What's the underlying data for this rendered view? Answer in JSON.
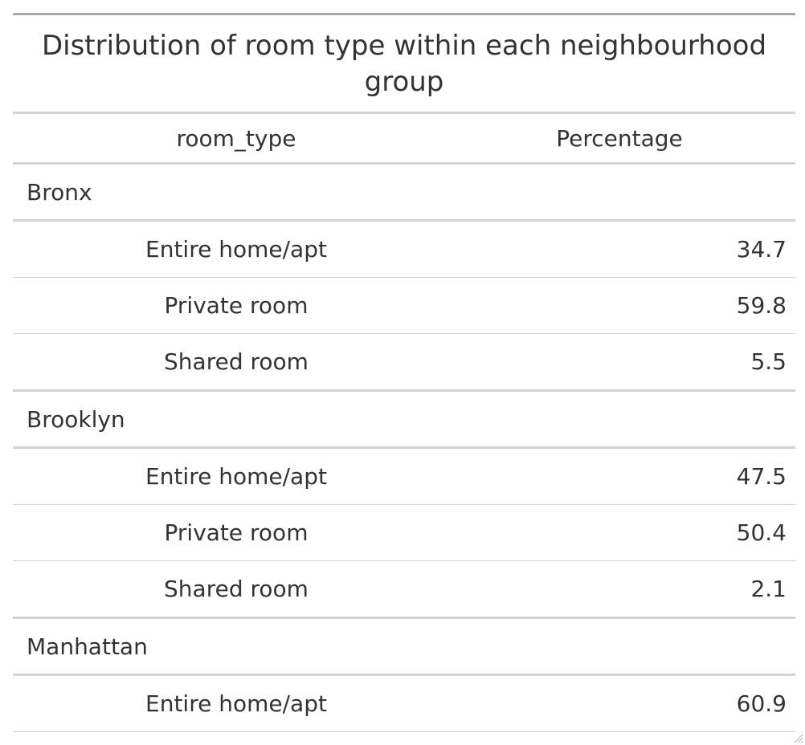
{
  "chart_data": {
    "type": "table",
    "title": "Distribution of room type within each neighbourhood group",
    "columns": [
      "room_type",
      "Percentage"
    ],
    "groups": [
      {
        "name": "Bronx",
        "rows": [
          {
            "room_type": "Entire home/apt",
            "percentage": "34.7"
          },
          {
            "room_type": "Private room",
            "percentage": "59.8"
          },
          {
            "room_type": "Shared room",
            "percentage": "5.5"
          }
        ]
      },
      {
        "name": "Brooklyn",
        "rows": [
          {
            "room_type": "Entire home/apt",
            "percentage": "47.5"
          },
          {
            "room_type": "Private room",
            "percentage": "50.4"
          },
          {
            "room_type": "Shared room",
            "percentage": "2.1"
          }
        ]
      },
      {
        "name": "Manhattan",
        "rows": [
          {
            "room_type": "Entire home/apt",
            "percentage": "60.9"
          }
        ]
      }
    ]
  }
}
